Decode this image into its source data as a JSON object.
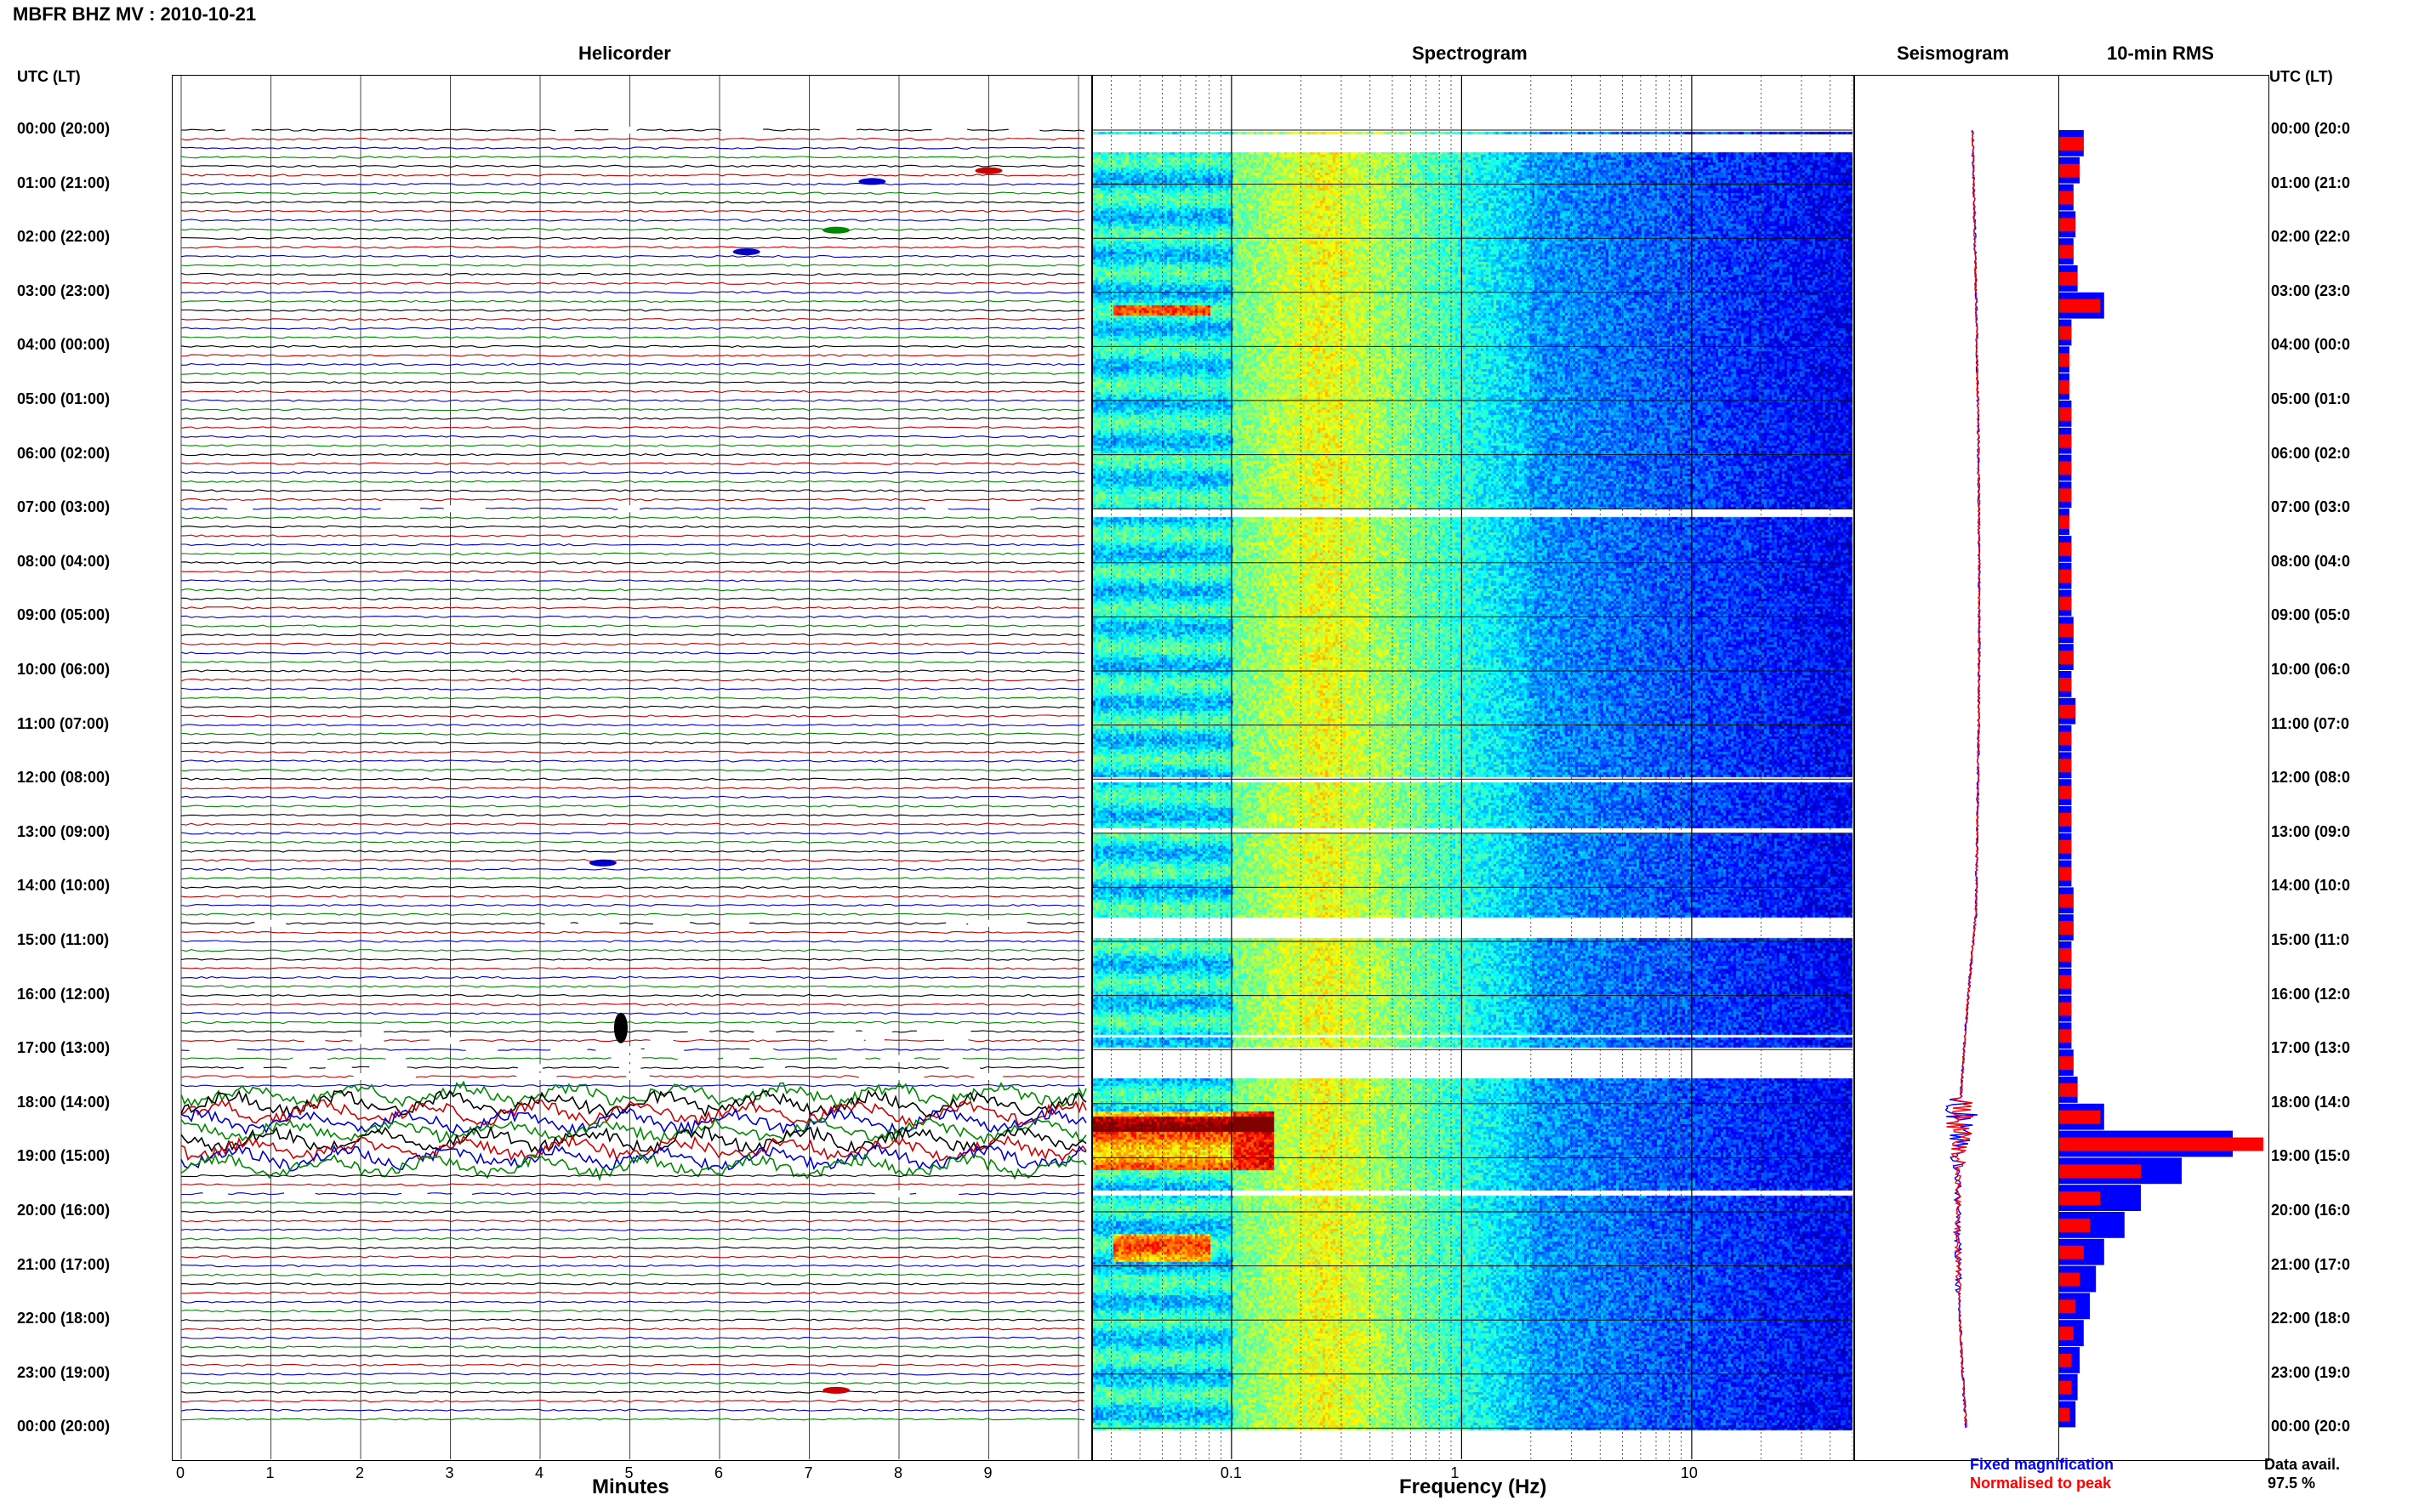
{
  "page_title": "MBFR BHZ MV : 2010-10-21",
  "left_axis_label": "UTC (LT)",
  "right_axis_label": "UTC (LT)",
  "panels": {
    "helicorder": "Helicorder",
    "spectrogram": "Spectrogram",
    "seismogram": "Seismogram",
    "rms": "10-min RMS"
  },
  "time_labels": [
    "00:00 (20:00)",
    "01:00 (21:00)",
    "02:00 (22:00)",
    "03:00 (23:00)",
    "04:00 (00:00)",
    "05:00 (01:00)",
    "06:00 (02:00)",
    "07:00 (03:00)",
    "08:00 (04:00)",
    "09:00 (05:00)",
    "10:00 (06:00)",
    "11:00 (07:00)",
    "12:00 (08:00)",
    "13:00 (09:00)",
    "14:00 (10:00)",
    "15:00 (11:00)",
    "16:00 (12:00)",
    "17:00 (13:00)",
    "18:00 (14:00)",
    "19:00 (15:00)",
    "20:00 (16:00)",
    "21:00 (17:00)",
    "22:00 (18:00)",
    "23:00 (19:00)",
    "00:00 (20:00)"
  ],
  "right_time_labels": [
    "00:00 (20:0",
    "01:00 (21:0",
    "02:00 (22:0",
    "03:00 (23:0",
    "04:00 (00:0",
    "05:00 (01:0",
    "06:00 (02:0",
    "07:00 (03:0",
    "08:00 (04:0",
    "09:00 (05:0",
    "10:00 (06:0",
    "11:00 (07:0",
    "12:00 (08:0",
    "13:00 (09:0",
    "14:00 (10:0",
    "15:00 (11:0",
    "16:00 (12:0",
    "17:00 (13:0",
    "18:00 (14:0",
    "19:00 (15:0",
    "20:00 (16:0",
    "21:00 (17:0",
    "22:00 (18:0",
    "23:00 (19:0",
    "00:00 (20:0"
  ],
  "helicorder_xlabel": "Minutes",
  "helicorder_ticks": [
    "0",
    "1",
    "2",
    "3",
    "4",
    "5",
    "6",
    "7",
    "8",
    "9"
  ],
  "spectrogram_xlabel": "Frequency (Hz)",
  "spectrogram_ticks": [
    "0.1",
    "1",
    "10"
  ],
  "legend": {
    "fixed": "Fixed magnification",
    "normalised": "Normalised to peak",
    "fixed_color": "#0000ff",
    "normalised_color": "#ff0000"
  },
  "data_avail_label": "Data avail.",
  "data_avail_value": "97.5 %",
  "chart_data": {
    "type": "heatmap",
    "station": "MBFR BHZ MV",
    "date": "2010-10-21",
    "helicorder": {
      "x_range_minutes": [
        0,
        10
      ],
      "row_minutes": 10,
      "rows": 144,
      "trace_colors": [
        "#000000",
        "#cc0000",
        "#0000cc",
        "#008800"
      ],
      "events": [
        {
          "hour": 0.95,
          "minute": 7.7,
          "color": "#0000cc"
        },
        {
          "hour": 0.75,
          "minute": 9.0,
          "color": "#cc0000"
        },
        {
          "hour": 1.85,
          "minute": 7.3,
          "color": "#008800"
        },
        {
          "hour": 2.25,
          "minute": 6.3,
          "color": "#0000cc"
        },
        {
          "hour": 13.55,
          "minute": 4.7,
          "color": "#0000cc"
        },
        {
          "hour": 16.6,
          "minute": 4.9,
          "color": "#000000"
        },
        {
          "hour": 23.3,
          "minute": 7.3,
          "color": "#cc0000"
        }
      ],
      "gaps_hours": [
        [
          0.0,
          0.1
        ],
        [
          6.95,
          7.05
        ],
        [
          12.4,
          12.5
        ],
        [
          14.55,
          14.7
        ],
        [
          16.6,
          17.1
        ],
        [
          17.15,
          17.6
        ],
        [
          19.6,
          19.7
        ]
      ],
      "large_signal_hours": [
        17.8,
        19.2
      ]
    },
    "spectrogram": {
      "x_scale": "log",
      "x_range_hz": [
        0.025,
        50
      ],
      "y_range_hours": [
        0,
        24
      ],
      "gaps_hours": [
        [
          0.05,
          0.4
        ],
        [
          7.0,
          7.15
        ],
        [
          11.95,
          12.05
        ],
        [
          12.9,
          13.0
        ],
        [
          14.55,
          14.9
        ],
        [
          16.7,
          16.75
        ],
        [
          16.95,
          17.5
        ],
        [
          19.6,
          19.7
        ]
      ],
      "high_energy": [
        {
          "hours": [
            3.2,
            3.4
          ],
          "hz": [
            0.03,
            0.08
          ]
        },
        {
          "hours": [
            18.1,
            19.2
          ],
          "hz": [
            0.025,
            0.15
          ]
        },
        {
          "hours": [
            20.4,
            20.9
          ],
          "hz": [
            0.03,
            0.08
          ]
        }
      ]
    },
    "rms": {
      "x_axis": "10-min RMS",
      "hours": [
        0.25,
        0.75,
        1.25,
        1.75,
        2.25,
        2.75,
        3.25,
        3.75,
        4.25,
        4.75,
        5.25,
        5.75,
        6.25,
        6.75,
        7.25,
        7.75,
        8.25,
        8.75,
        9.25,
        9.75,
        10.25,
        10.75,
        11.25,
        11.75,
        12.25,
        12.75,
        13.25,
        13.75,
        14.25,
        14.75,
        15.25,
        15.75,
        16.25,
        16.75,
        17.25,
        17.75,
        18.25,
        18.75,
        19.25,
        19.75,
        20.25,
        20.75,
        21.25,
        21.75,
        22.25,
        22.75,
        23.25,
        23.75
      ],
      "fixed_magnification": [
        0.12,
        0.1,
        0.07,
        0.08,
        0.07,
        0.09,
        0.22,
        0.06,
        0.05,
        0.05,
        0.06,
        0.06,
        0.06,
        0.06,
        0.05,
        0.06,
        0.06,
        0.06,
        0.07,
        0.07,
        0.06,
        0.08,
        0.06,
        0.06,
        0.06,
        0.06,
        0.06,
        0.06,
        0.07,
        0.07,
        0.06,
        0.06,
        0.06,
        0.06,
        0.07,
        0.09,
        0.22,
        0.85,
        0.6,
        0.4,
        0.32,
        0.22,
        0.18,
        0.15,
        0.12,
        0.1,
        0.09,
        0.08
      ],
      "normalised_to_peak": [
        0.12,
        0.1,
        0.07,
        0.08,
        0.07,
        0.09,
        0.2,
        0.06,
        0.05,
        0.05,
        0.06,
        0.06,
        0.06,
        0.06,
        0.05,
        0.06,
        0.06,
        0.06,
        0.07,
        0.07,
        0.06,
        0.08,
        0.06,
        0.06,
        0.06,
        0.06,
        0.06,
        0.06,
        0.07,
        0.07,
        0.06,
        0.06,
        0.06,
        0.06,
        0.07,
        0.09,
        0.2,
        1.0,
        0.4,
        0.2,
        0.15,
        0.12,
        0.1,
        0.08,
        0.07,
        0.06,
        0.06,
        0.05
      ]
    }
  }
}
